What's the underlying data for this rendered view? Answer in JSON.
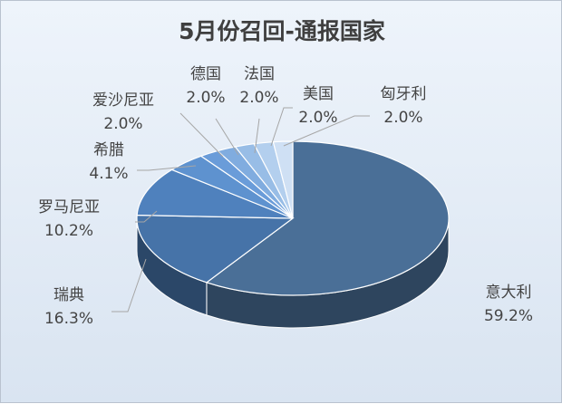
{
  "chart_data": {
    "type": "pie",
    "title": "5月份召回-通报国家",
    "slices": [
      {
        "label": "意大利",
        "value": 59.2,
        "value_text": "59.2%",
        "color": "#4a6f97"
      },
      {
        "label": "瑞典",
        "value": 16.3,
        "value_text": "16.3%",
        "color": "#4673a8"
      },
      {
        "label": "罗马尼亚",
        "value": 10.2,
        "value_text": "10.2%",
        "color": "#4f81bd"
      },
      {
        "label": "希腊",
        "value": 4.1,
        "value_text": "4.1%",
        "color": "#5e92cf"
      },
      {
        "label": "爱沙尼亚",
        "value": 2.0,
        "value_text": "2.0%",
        "color": "#6a9cd9"
      },
      {
        "label": "德国",
        "value": 2.0,
        "value_text": "2.0%",
        "color": "#80acdf"
      },
      {
        "label": "法国",
        "value": 2.0,
        "value_text": "2.0%",
        "color": "#98bde6"
      },
      {
        "label": "美国",
        "value": 2.0,
        "value_text": "2.0%",
        "color": "#b3cfee"
      },
      {
        "label": "匈牙利",
        "value": 2.0,
        "value_text": "2.0%",
        "color": "#cfe0f4"
      }
    ]
  }
}
